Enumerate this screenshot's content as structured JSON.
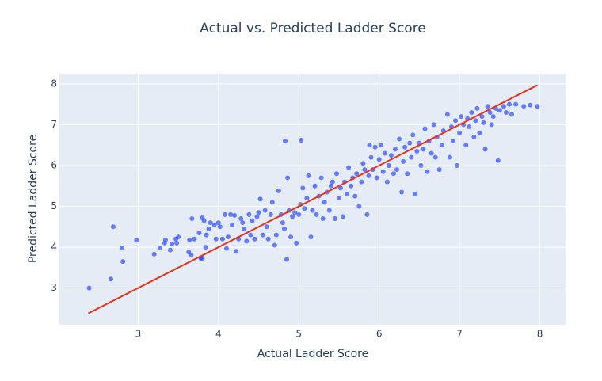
{
  "chart_data": {
    "type": "scatter",
    "title": "Actual vs. Predicted Ladder Score",
    "x_label": "Actual Ladder Score",
    "y_label": "Predicted Ladder Score",
    "xlim": [
      2.02,
      8.33
    ],
    "ylim": [
      2.1,
      8.25
    ],
    "xticks": [
      3,
      4,
      5,
      6,
      7,
      8
    ],
    "yticks": [
      3,
      4,
      5,
      6,
      7,
      8
    ],
    "grid": true,
    "series": [
      {
        "mode": "markers",
        "color": "#1f3fff",
        "x": [
          2.39,
          2.66,
          2.69,
          2.8,
          2.81,
          2.98,
          3.2,
          3.27,
          3.33,
          3.34,
          3.4,
          3.42,
          3.47,
          3.48,
          3.5,
          3.63,
          3.64,
          3.66,
          3.67,
          3.7,
          3.76,
          3.78,
          3.8,
          3.8,
          3.82,
          3.84,
          3.85,
          3.88,
          3.9,
          3.95,
          3.97,
          4.0,
          4.02,
          4.05,
          4.08,
          4.1,
          4.12,
          4.15,
          4.17,
          4.2,
          4.22,
          4.25,
          4.28,
          4.3,
          4.32,
          4.35,
          4.38,
          4.4,
          4.42,
          4.45,
          4.48,
          4.5,
          4.52,
          4.55,
          4.58,
          4.6,
          4.62,
          4.65,
          4.67,
          4.7,
          4.72,
          4.75,
          4.78,
          4.8,
          4.82,
          4.83,
          4.85,
          4.86,
          4.88,
          4.9,
          4.92,
          4.95,
          4.97,
          5.0,
          5.03,
          5.02,
          5.05,
          5.07,
          5.1,
          5.12,
          5.15,
          5.17,
          5.2,
          5.22,
          5.25,
          5.28,
          5.3,
          5.32,
          5.35,
          5.38,
          5.4,
          5.42,
          5.45,
          5.47,
          5.5,
          5.52,
          5.55,
          5.57,
          5.6,
          5.62,
          5.65,
          5.67,
          5.7,
          5.72,
          5.75,
          5.78,
          5.8,
          5.82,
          5.85,
          5.87,
          5.88,
          5.9,
          5.92,
          5.95,
          5.97,
          6.0,
          6.02,
          6.05,
          6.07,
          6.1,
          6.12,
          6.15,
          6.18,
          6.2,
          6.22,
          6.25,
          6.28,
          6.3,
          6.32,
          6.35,
          6.38,
          6.4,
          6.42,
          6.45,
          6.47,
          6.5,
          6.52,
          6.55,
          6.57,
          6.6,
          6.62,
          6.65,
          6.68,
          6.7,
          6.72,
          6.75,
          6.78,
          6.8,
          6.85,
          6.88,
          6.9,
          6.92,
          6.95,
          6.97,
          7.0,
          7.02,
          7.05,
          7.08,
          7.1,
          7.12,
          7.15,
          7.18,
          7.2,
          7.22,
          7.25,
          7.28,
          7.3,
          7.32,
          7.35,
          7.38,
          7.4,
          7.42,
          7.45,
          7.48,
          7.5,
          7.55,
          7.58,
          7.62,
          7.65,
          7.7,
          7.8,
          7.88,
          7.97
        ],
        "values": [
          3.0,
          3.22,
          4.5,
          3.98,
          3.65,
          4.17,
          3.83,
          3.98,
          4.1,
          4.18,
          3.93,
          4.08,
          4.2,
          4.1,
          4.25,
          3.88,
          4.18,
          3.81,
          4.7,
          4.2,
          4.35,
          3.73,
          3.73,
          4.72,
          4.65,
          4.0,
          4.3,
          4.45,
          4.6,
          4.55,
          4.2,
          4.6,
          4.5,
          4.2,
          4.8,
          3.97,
          4.25,
          4.8,
          4.55,
          4.78,
          3.9,
          4.2,
          4.7,
          4.6,
          4.45,
          4.15,
          4.8,
          4.3,
          4.65,
          4.2,
          4.75,
          4.85,
          5.18,
          4.3,
          4.9,
          4.5,
          4.2,
          4.8,
          5.1,
          4.05,
          4.3,
          5.38,
          4.8,
          4.6,
          4.45,
          6.6,
          3.7,
          5.7,
          4.9,
          4.25,
          4.75,
          4.85,
          4.1,
          4.8,
          6.62,
          5.05,
          5.45,
          4.95,
          5.2,
          5.75,
          4.25,
          4.9,
          5.5,
          4.8,
          5.25,
          5.7,
          4.7,
          5.1,
          5.35,
          4.9,
          5.5,
          5.6,
          4.7,
          5.8,
          5.2,
          5.45,
          4.75,
          5.6,
          5.3,
          5.95,
          5.5,
          5.7,
          5.25,
          5.8,
          5.0,
          5.6,
          6.05,
          5.9,
          4.8,
          5.75,
          6.5,
          6.2,
          5.9,
          6.45,
          5.7,
          6.15,
          6.5,
          5.85,
          6.3,
          5.6,
          6.0,
          6.25,
          5.8,
          6.4,
          5.9,
          6.65,
          5.35,
          6.1,
          6.45,
          5.8,
          6.55,
          6.2,
          6.75,
          5.3,
          6.35,
          6.55,
          6.0,
          6.4,
          6.9,
          5.85,
          6.6,
          6.3,
          7.0,
          6.2,
          6.7,
          5.9,
          6.5,
          6.85,
          7.25,
          6.2,
          6.95,
          6.6,
          7.1,
          6.0,
          6.8,
          7.2,
          7.0,
          6.5,
          7.15,
          6.95,
          7.3,
          6.7,
          7.1,
          7.4,
          6.8,
          7.2,
          7.05,
          6.4,
          7.45,
          7.3,
          7.0,
          7.2,
          7.4,
          6.12,
          7.35,
          7.45,
          7.3,
          7.5,
          7.25,
          7.5,
          7.45,
          7.48,
          7.45
        ]
      },
      {
        "mode": "line",
        "color": "#e8321a",
        "x": [
          2.38,
          7.97
        ],
        "values": [
          2.38,
          7.97
        ]
      }
    ]
  }
}
